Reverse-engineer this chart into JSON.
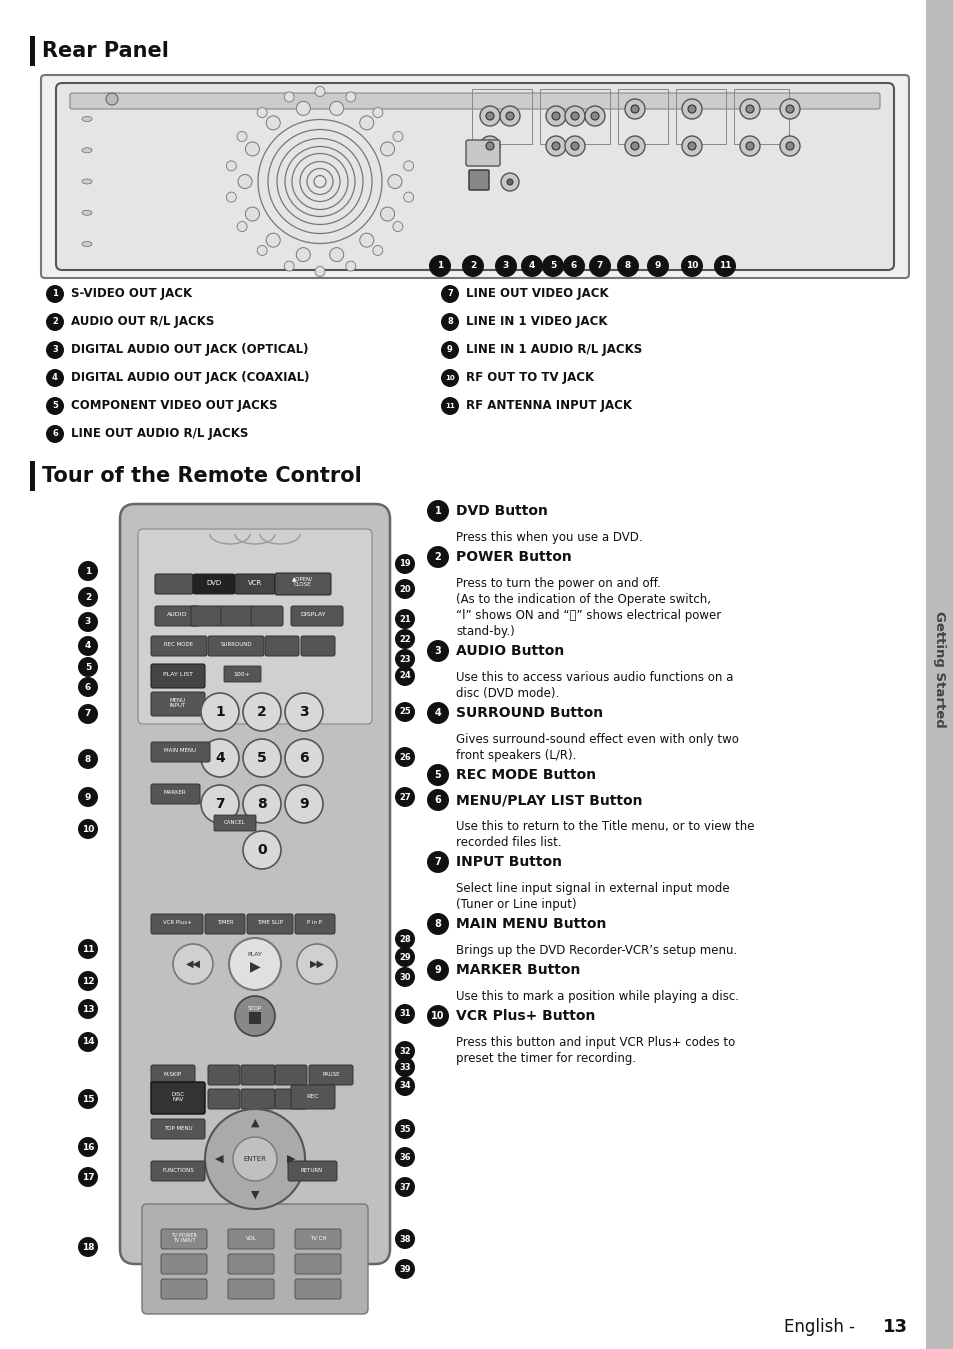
{
  "page_bg": "#ffffff",
  "sidebar_color": "#bbbbbb",
  "sidebar_text": "Getting Started",
  "section1_title": "Rear Panel",
  "section2_title": "Tour of the Remote Control",
  "footer_plain": "English - ",
  "footer_bold": "13",
  "left_items": [
    "S-VIDEO OUT JACK",
    "AUDIO OUT R/L JACKS",
    "DIGITAL AUDIO OUT JACK (OPTICAL)",
    "DIGITAL AUDIO OUT JACK (COAXIAL)",
    "COMPONENT VIDEO OUT JACKS",
    "LINE OUT AUDIO R/L JACKS"
  ],
  "right_items": [
    "LINE OUT VIDEO JACK",
    "LINE IN 1 VIDEO JACK",
    "LINE IN 1 AUDIO R/L JACKS",
    "RF OUT TO TV JACK",
    "RF ANTENNA INPUT JACK"
  ],
  "button_descriptions": [
    [
      "DVD Button",
      "Press this when you use a DVD."
    ],
    [
      "POWER Button",
      "Press to turn the power on and off.\n(As to the indication of the Operate switch,\n“l” shows ON and “⏻” shows electrical power\nstand-by.)"
    ],
    [
      "AUDIO Button",
      "Use this to access various audio functions on a\ndisc (DVD mode)."
    ],
    [
      "SURROUND Button",
      "Gives surround-sound effect even with only two\nfront speakers (L/R)."
    ],
    [
      "REC MODE Button",
      ""
    ],
    [
      "MENU/PLAY LIST Button",
      "Use this to return to the Title menu, or to view the\nrecorded files list."
    ],
    [
      "INPUT Button",
      "Select line input signal in external input mode\n(Tuner or Line input)"
    ],
    [
      "MAIN MENU Button",
      "Brings up the DVD Recorder-VCR’s setup menu."
    ],
    [
      "MARKER Button",
      "Use this to mark a position while playing a disc."
    ],
    [
      "VCR Plus+ Button",
      "Press this button and input VCR Plus+ codes to\npreset the timer for recording."
    ]
  ]
}
